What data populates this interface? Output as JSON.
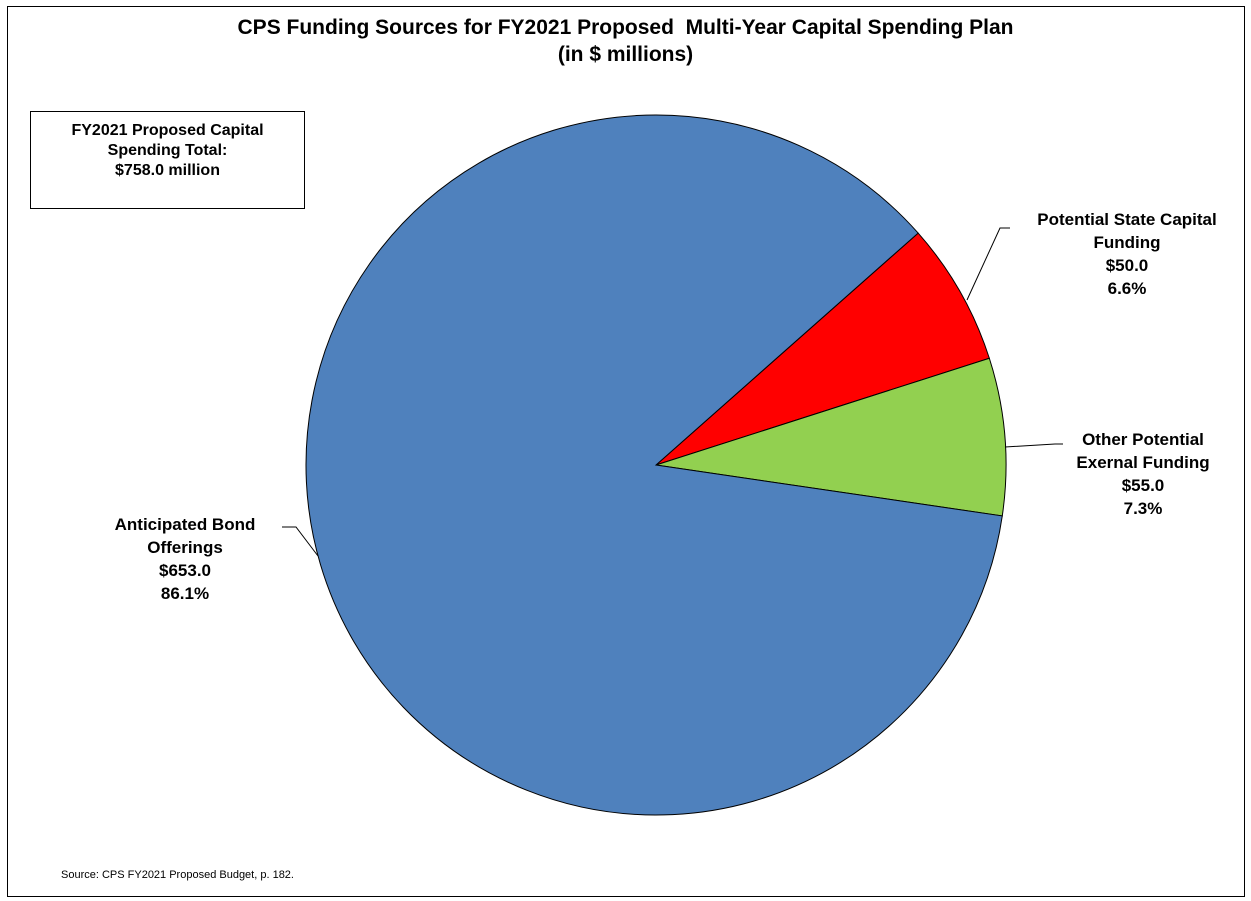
{
  "title_lines": [
    "CPS Funding Sources for FY2021 Proposed  Multi-Year Capital Spending Plan",
    "(in $ millions)"
  ],
  "total_box": {
    "lines": [
      "FY2021 Proposed Capital",
      "Spending Total:",
      "$758.0 million"
    ]
  },
  "source_note": "Source: CPS FY2021 Proposed Budget, p. 182.",
  "chart_data": {
    "type": "pie",
    "title": "CPS Funding Sources for FY2021 Proposed  Multi-Year Capital Spending Plan (in $ millions)",
    "slices": [
      {
        "label_lines": [
          "Potential State Capital",
          "Funding"
        ],
        "value": 50.0,
        "value_label": "$50.0",
        "percent_label": "6.6%",
        "color": "#FF0000"
      },
      {
        "label_lines": [
          "Other Potential",
          "Exernal Funding"
        ],
        "value": 55.0,
        "value_label": "$55.0",
        "percent_label": "7.3%",
        "color": "#92D050"
      },
      {
        "label_lines": [
          "Anticipated Bond",
          "Offerings"
        ],
        "value": 653.0,
        "value_label": "$653.0",
        "percent_label": "86.1%",
        "color": "#4F81BD"
      }
    ]
  }
}
